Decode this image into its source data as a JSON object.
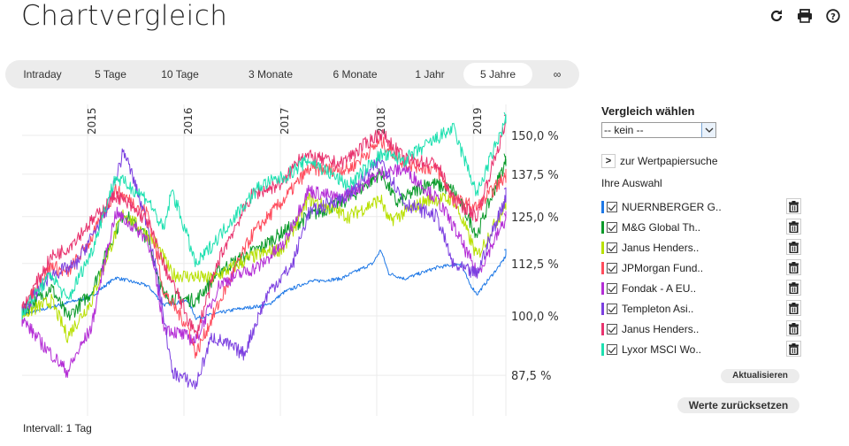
{
  "header": {
    "title": "Chartvergleich",
    "icons": [
      "refresh-icon",
      "print-icon",
      "help-icon"
    ]
  },
  "tabs": [
    {
      "label": "Intraday",
      "selected": false
    },
    {
      "label": "5 Tage",
      "selected": false
    },
    {
      "label": "10 Tage",
      "selected": false
    },
    {
      "label": "3 Monate",
      "selected": false
    },
    {
      "label": "6 Monate",
      "selected": false
    },
    {
      "label": "1 Jahr",
      "selected": false
    },
    {
      "label": "5 Jahre",
      "selected": true
    },
    {
      "label": "∞",
      "selected": false
    }
  ],
  "interval_label": "Intervall: 1 Tag",
  "panel": {
    "heading": "Vergleich wählen",
    "select_value": "-- kein --",
    "search_link": "zur Wertpapiersuche",
    "selection_heading": "Ihre Auswahl",
    "update_button": "Aktualisieren",
    "reset_button": "Werte zurücksetzen"
  },
  "chart_data": {
    "type": "line",
    "y_scale": "log",
    "ylim": [
      84,
      160
    ],
    "y_ticks": [
      "87,5 %",
      "100,0 %",
      "112,5 %",
      "125,0 %",
      "137,5 %",
      "150,0 %"
    ],
    "y_tick_values": [
      87.5,
      100,
      112.5,
      125,
      137.5,
      150
    ],
    "x_ticks": [
      "2015",
      "2016",
      "2017",
      "2018",
      "2019"
    ],
    "xlim": [
      "2014-04",
      "2019-05"
    ],
    "grid": true,
    "series": [
      {
        "name": "NUERNBERGER G..",
        "color": "#1e78e6",
        "checked": true,
        "points": [
          [
            "2014-04",
            100
          ],
          [
            "2014-09",
            102.5
          ],
          [
            "2015-01",
            104.5
          ],
          [
            "2015-04",
            109
          ],
          [
            "2015-08",
            107
          ],
          [
            "2015-10",
            102.5
          ],
          [
            "2016-01",
            103.5
          ],
          [
            "2016-02",
            99.5
          ],
          [
            "2016-07",
            101.5
          ],
          [
            "2016-11",
            102.5
          ],
          [
            "2017-01",
            105.5
          ],
          [
            "2017-04",
            108
          ],
          [
            "2017-08",
            108.7
          ],
          [
            "2017-12",
            112.5
          ],
          [
            "2018-01",
            116
          ],
          [
            "2018-02",
            110
          ],
          [
            "2018-04",
            108.7
          ],
          [
            "2018-08",
            111.5
          ],
          [
            "2018-11",
            112.5
          ],
          [
            "2018-12",
            107.6
          ],
          [
            "2019-01",
            105
          ],
          [
            "2019-04",
            112.5
          ],
          [
            "2019-05",
            116
          ]
        ]
      },
      {
        "name": "M&G Global Th..",
        "color": "#0a9a2a",
        "checked": true,
        "points": [
          [
            "2014-04",
            100
          ],
          [
            "2014-08",
            106.6
          ],
          [
            "2014-10",
            99.5
          ],
          [
            "2015-01",
            105.5
          ],
          [
            "2015-05",
            126
          ],
          [
            "2015-08",
            119
          ],
          [
            "2015-10",
            104.5
          ],
          [
            "2016-02",
            103.5
          ],
          [
            "2016-05",
            110.9
          ],
          [
            "2016-10",
            116.5
          ],
          [
            "2017-01",
            121
          ],
          [
            "2017-04",
            125
          ],
          [
            "2017-09",
            130
          ],
          [
            "2018-01",
            138
          ],
          [
            "2018-03",
            128.8
          ],
          [
            "2018-07",
            135
          ],
          [
            "2018-10",
            132.6
          ],
          [
            "2019-01",
            120
          ],
          [
            "2019-05",
            144
          ]
        ]
      },
      {
        "name": "Janus Henders..",
        "color": "#b8e000",
        "checked": true,
        "points": [
          [
            "2014-04",
            100
          ],
          [
            "2014-08",
            103.4
          ],
          [
            "2014-10",
            95.5
          ],
          [
            "2015-01",
            103.4
          ],
          [
            "2015-05",
            126
          ],
          [
            "2015-09",
            117.7
          ],
          [
            "2015-11",
            109.8
          ],
          [
            "2016-04",
            108.7
          ],
          [
            "2016-09",
            114.2
          ],
          [
            "2017-01",
            116.5
          ],
          [
            "2017-04",
            130
          ],
          [
            "2017-09",
            125
          ],
          [
            "2018-01",
            130
          ],
          [
            "2018-02",
            123.7
          ],
          [
            "2018-07",
            130
          ],
          [
            "2018-10",
            130
          ],
          [
            "2019-01",
            114.2
          ],
          [
            "2019-05",
            130
          ]
        ]
      },
      {
        "name": "JPMorgan Fund..",
        "color": "#ff4c5c",
        "checked": true,
        "points": [
          [
            "2014-04",
            100
          ],
          [
            "2014-08",
            112
          ],
          [
            "2014-10",
            110
          ],
          [
            "2015-01",
            119
          ],
          [
            "2015-04",
            132.6
          ],
          [
            "2015-08",
            126
          ],
          [
            "2015-10",
            105.5
          ],
          [
            "2016-01",
            97.5
          ],
          [
            "2016-02",
            91.8
          ],
          [
            "2016-05",
            103.4
          ],
          [
            "2016-09",
            120
          ],
          [
            "2017-01",
            130
          ],
          [
            "2017-04",
            139
          ],
          [
            "2017-09",
            139
          ],
          [
            "2018-01",
            148
          ],
          [
            "2018-04",
            140.7
          ],
          [
            "2018-08",
            139
          ],
          [
            "2018-10",
            130
          ],
          [
            "2019-01",
            127.5
          ],
          [
            "2019-05",
            138
          ]
        ]
      },
      {
        "name": "Fondak - A EU..",
        "color": "#b42ed6",
        "checked": true,
        "points": [
          [
            "2014-04",
            100
          ],
          [
            "2014-07",
            93.6
          ],
          [
            "2014-10",
            88.2
          ],
          [
            "2015-01",
            97.5
          ],
          [
            "2015-04",
            126
          ],
          [
            "2015-08",
            119
          ],
          [
            "2015-10",
            97.5
          ],
          [
            "2016-02",
            94.6
          ],
          [
            "2016-05",
            107.6
          ],
          [
            "2016-10",
            112
          ],
          [
            "2017-01",
            117.7
          ],
          [
            "2017-04",
            132.6
          ],
          [
            "2017-08",
            130
          ],
          [
            "2018-01",
            138
          ],
          [
            "2018-04",
            139
          ],
          [
            "2018-08",
            130
          ],
          [
            "2018-10",
            122.5
          ],
          [
            "2019-01",
            109.8
          ],
          [
            "2019-05",
            126
          ]
        ]
      },
      {
        "name": "Templeton Asi..",
        "color": "#7b3fe0",
        "checked": true,
        "points": [
          [
            "2014-04",
            100
          ],
          [
            "2014-08",
            109.8
          ],
          [
            "2014-11",
            112
          ],
          [
            "2015-03",
            127
          ],
          [
            "2015-05",
            145
          ],
          [
            "2015-08",
            122.5
          ],
          [
            "2015-11",
            88.2
          ],
          [
            "2016-02",
            85.6
          ],
          [
            "2016-04",
            95.5
          ],
          [
            "2016-08",
            91.8
          ],
          [
            "2016-11",
            105.5
          ],
          [
            "2017-02",
            112
          ],
          [
            "2017-04",
            126
          ],
          [
            "2017-09",
            131.3
          ],
          [
            "2018-01",
            142
          ],
          [
            "2018-04",
            128.8
          ],
          [
            "2018-08",
            125
          ],
          [
            "2018-10",
            112
          ],
          [
            "2019-01",
            109.8
          ],
          [
            "2019-05",
            133
          ]
        ]
      },
      {
        "name": "Janus Henders..",
        "color": "#e8336e",
        "checked": true,
        "points": [
          [
            "2014-04",
            100
          ],
          [
            "2014-08",
            114.2
          ],
          [
            "2014-10",
            116.5
          ],
          [
            "2015-02",
            126
          ],
          [
            "2015-04",
            131.3
          ],
          [
            "2015-08",
            123.7
          ],
          [
            "2015-10",
            112
          ],
          [
            "2016-02",
            95.5
          ],
          [
            "2016-05",
            114.2
          ],
          [
            "2016-09",
            131.3
          ],
          [
            "2017-01",
            135
          ],
          [
            "2017-03",
            143.6
          ],
          [
            "2017-08",
            140.7
          ],
          [
            "2018-01",
            151
          ],
          [
            "2018-04",
            142
          ],
          [
            "2018-08",
            140.7
          ],
          [
            "2018-10",
            130
          ],
          [
            "2019-01",
            125
          ],
          [
            "2019-05",
            157
          ]
        ]
      },
      {
        "name": "Lyxor MSCI Wo..",
        "color": "#1de0b0",
        "checked": true,
        "points": [
          [
            "2014-04",
            100
          ],
          [
            "2014-08",
            109.8
          ],
          [
            "2014-10",
            103.4
          ],
          [
            "2015-01",
            115.4
          ],
          [
            "2015-04",
            136.6
          ],
          [
            "2015-08",
            130
          ],
          [
            "2015-10",
            121
          ],
          [
            "2015-11",
            132.6
          ],
          [
            "2016-02",
            112
          ],
          [
            "2016-05",
            120
          ],
          [
            "2016-10",
            134
          ],
          [
            "2017-01",
            136.6
          ],
          [
            "2017-04",
            142
          ],
          [
            "2017-09",
            134
          ],
          [
            "2018-01",
            143.6
          ],
          [
            "2018-04",
            142
          ],
          [
            "2018-08",
            149
          ],
          [
            "2018-10",
            152.5
          ],
          [
            "2018-11",
            145
          ],
          [
            "2019-01",
            131.3
          ],
          [
            "2019-05",
            158
          ]
        ]
      }
    ]
  }
}
